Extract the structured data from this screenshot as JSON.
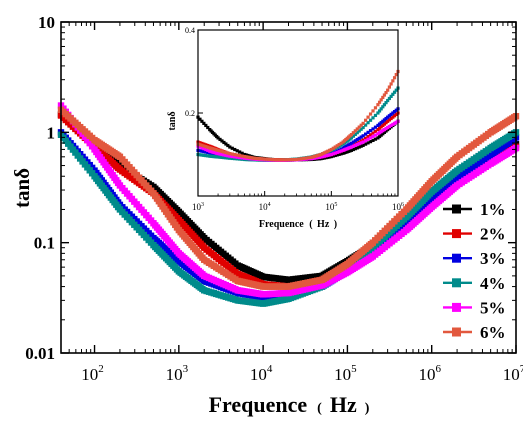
{
  "chart_data": [
    {
      "type": "line",
      "title": "",
      "xlabel": "Frequence",
      "xunit": "Hz",
      "ylabel": "tanδ",
      "xscale": "log",
      "yscale": "log",
      "xlim": [
        40,
        10000000
      ],
      "ylim": [
        0.01,
        10
      ],
      "x_ticks": [
        {
          "base": "10",
          "exp": "2",
          "value": 100
        },
        {
          "base": "10",
          "exp": "3",
          "value": 1000
        },
        {
          "base": "10",
          "exp": "4",
          "value": 10000
        },
        {
          "base": "10",
          "exp": "5",
          "value": 100000
        },
        {
          "base": "10",
          "exp": "6",
          "value": 1000000
        },
        {
          "base": "10",
          "exp": "7",
          "value": 10000000
        }
      ],
      "y_ticks": [
        {
          "label": "0.01",
          "value": 0.01
        },
        {
          "label": "0.1",
          "value": 0.1
        },
        {
          "label": "1",
          "value": 1
        },
        {
          "label": "10",
          "value": 10
        }
      ],
      "legend_position": "lower-right",
      "x": [
        40,
        100,
        200,
        500,
        1000,
        2000,
        5000,
        10000,
        20000,
        50000,
        100000,
        200000,
        500000,
        1000000,
        2000000,
        5000000,
        10000000
      ],
      "series": [
        {
          "name": "1%",
          "color": "#000000",
          "values": [
            1.45,
            0.78,
            0.5,
            0.32,
            0.19,
            0.11,
            0.062,
            0.049,
            0.046,
            0.05,
            0.068,
            0.095,
            0.17,
            0.27,
            0.4,
            0.6,
            0.78
          ]
        },
        {
          "name": "2%",
          "color": "#e00000",
          "values": [
            1.42,
            0.74,
            0.46,
            0.28,
            0.16,
            0.09,
            0.052,
            0.042,
            0.04,
            0.046,
            0.062,
            0.09,
            0.16,
            0.25,
            0.38,
            0.56,
            0.74
          ]
        },
        {
          "name": "3%",
          "color": "#0000e0",
          "values": [
            1.0,
            0.45,
            0.22,
            0.11,
            0.068,
            0.045,
            0.035,
            0.032,
            0.033,
            0.04,
            0.055,
            0.08,
            0.15,
            0.24,
            0.38,
            0.62,
            0.9
          ]
        },
        {
          "name": "4%",
          "color": "#008b8b",
          "values": [
            0.95,
            0.4,
            0.2,
            0.095,
            0.055,
            0.037,
            0.03,
            0.028,
            0.031,
            0.04,
            0.058,
            0.09,
            0.17,
            0.29,
            0.45,
            0.72,
            1.0
          ]
        },
        {
          "name": "5%",
          "color": "#ff00ff",
          "values": [
            1.75,
            0.7,
            0.33,
            0.15,
            0.08,
            0.05,
            0.037,
            0.034,
            0.035,
            0.041,
            0.054,
            0.075,
            0.13,
            0.21,
            0.33,
            0.52,
            0.72
          ]
        },
        {
          "name": "6%",
          "color": "#e2583e",
          "values": [
            1.6,
            0.85,
            0.6,
            0.28,
            0.13,
            0.07,
            0.045,
            0.04,
            0.04,
            0.046,
            0.064,
            0.1,
            0.2,
            0.36,
            0.6,
            1.0,
            1.4
          ]
        }
      ]
    },
    {
      "type": "line",
      "title": "",
      "xlabel": "Frequence",
      "xunit": "Hz",
      "ylabel": "tanδ",
      "xscale": "log",
      "yscale": "linear",
      "xlim": [
        1000,
        1000000
      ],
      "ylim": [
        0.0,
        0.4
      ],
      "x_ticks": [
        {
          "base": "10",
          "exp": "3",
          "value": 1000
        },
        {
          "base": "10",
          "exp": "4",
          "value": 10000
        },
        {
          "base": "10",
          "exp": "5",
          "value": 100000
        },
        {
          "base": "10",
          "exp": "6",
          "value": 1000000
        }
      ],
      "y_ticks": [
        {
          "label": "0.2",
          "value": 0.2
        },
        {
          "label": "0.4",
          "value": 0.4
        }
      ],
      "x": [
        1000,
        1500,
        2000,
        3000,
        5000,
        7000,
        10000,
        15000,
        20000,
        30000,
        50000,
        70000,
        100000,
        150000,
        200000,
        300000,
        500000,
        700000,
        1000000
      ],
      "series": [
        {
          "name": "1%",
          "color": "#000000",
          "values": [
            0.19,
            0.16,
            0.14,
            0.118,
            0.1,
            0.093,
            0.09,
            0.087,
            0.087,
            0.087,
            0.088,
            0.09,
            0.095,
            0.103,
            0.11,
            0.122,
            0.14,
            0.16,
            0.18
          ]
        },
        {
          "name": "2%",
          "color": "#e00000",
          "values": [
            0.13,
            0.12,
            0.112,
            0.102,
            0.094,
            0.09,
            0.088,
            0.087,
            0.087,
            0.087,
            0.09,
            0.094,
            0.1,
            0.11,
            0.12,
            0.135,
            0.16,
            0.18,
            0.2
          ]
        },
        {
          "name": "3%",
          "color": "#0000e0",
          "values": [
            0.11,
            0.104,
            0.1,
            0.095,
            0.09,
            0.088,
            0.087,
            0.086,
            0.086,
            0.087,
            0.09,
            0.095,
            0.102,
            0.115,
            0.127,
            0.145,
            0.17,
            0.19,
            0.21
          ]
        },
        {
          "name": "4%",
          "color": "#008b8b",
          "values": [
            0.1,
            0.096,
            0.094,
            0.091,
            0.088,
            0.087,
            0.086,
            0.086,
            0.087,
            0.089,
            0.094,
            0.1,
            0.11,
            0.125,
            0.14,
            0.165,
            0.2,
            0.23,
            0.26
          ]
        },
        {
          "name": "5%",
          "color": "#ff00ff",
          "values": [
            0.12,
            0.108,
            0.102,
            0.096,
            0.091,
            0.089,
            0.087,
            0.086,
            0.086,
            0.087,
            0.09,
            0.094,
            0.1,
            0.11,
            0.118,
            0.13,
            0.15,
            0.165,
            0.18
          ]
        },
        {
          "name": "6%",
          "color": "#e2583e",
          "values": [
            0.125,
            0.116,
            0.11,
            0.102,
            0.095,
            0.091,
            0.089,
            0.087,
            0.087,
            0.088,
            0.093,
            0.1,
            0.112,
            0.13,
            0.148,
            0.175,
            0.22,
            0.255,
            0.3
          ]
        }
      ]
    }
  ]
}
